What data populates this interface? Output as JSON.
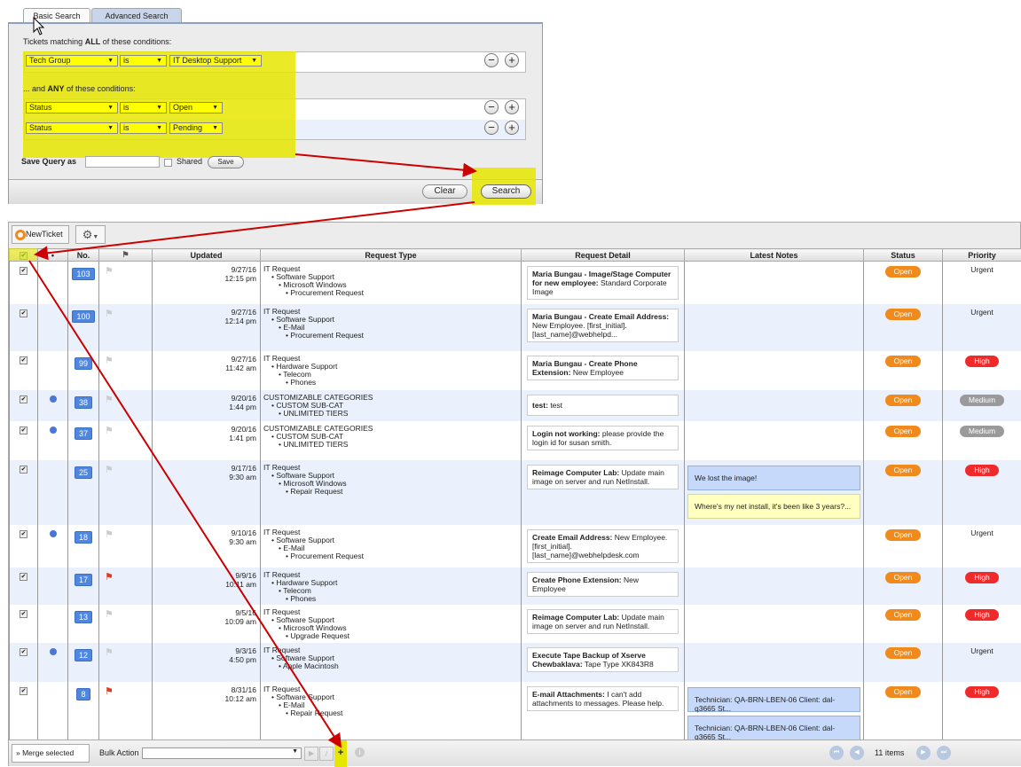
{
  "tabs": [
    "Basic Search",
    "Advanced Search"
  ],
  "search": {
    "all_label_prefix": "Tickets matching ",
    "all_bold": "ALL",
    "all_suffix": " of these conditions:",
    "any_prefix": "... and ",
    "any_bold": "ANY",
    "any_suffix": " of these conditions:",
    "all_conditions": [
      {
        "field": "Tech Group",
        "op": "is",
        "value": "IT Desktop Support"
      }
    ],
    "any_conditions": [
      {
        "field": "Status",
        "op": "is",
        "value": "Open"
      },
      {
        "field": "Status",
        "op": "is",
        "value": "Pending"
      }
    ],
    "save_query_label": "Save Query as",
    "save_query_value": "",
    "shared_label": "Shared",
    "save_button": "Save",
    "clear_button": "Clear",
    "search_button": "Search"
  },
  "toolbar": {
    "new_ticket": "NewTicket"
  },
  "columns": [
    "",
    "•",
    "No.",
    "",
    "Updated",
    "Request Type",
    "Request Detail",
    "Latest Notes",
    "Status",
    "Priority"
  ],
  "tickets": [
    {
      "no": "103",
      "dot": false,
      "flag": false,
      "date": "9/27/16",
      "time": "12:15 pm",
      "type": [
        "IT Request",
        "Software Support",
        "Microsoft Windows",
        "Procurement Request"
      ],
      "title": "Maria Bungau - Image/Stage Computer for new employee:",
      "detail": " Standard Corporate Image",
      "notes": [],
      "status": "Open",
      "priority": "Urgent"
    },
    {
      "no": "100",
      "dot": false,
      "flag": false,
      "date": "9/27/16",
      "time": "12:14 pm",
      "type": [
        "IT Request",
        "Software Support",
        "E-Mail",
        "Procurement Request"
      ],
      "title": "Maria Bungau - Create Email Address:",
      "detail": " New Employee. [first_initial].[last_name]@webhelpd...",
      "notes": [],
      "status": "Open",
      "priority": "Urgent"
    },
    {
      "no": "99",
      "dot": false,
      "flag": false,
      "date": "9/27/16",
      "time": "11:42 am",
      "type": [
        "IT Request",
        "Hardware Support",
        "Telecom",
        "Phones"
      ],
      "title": "Maria Bungau - Create Phone Extension:",
      "detail": " New Employee",
      "notes": [],
      "status": "Open",
      "priority": "High"
    },
    {
      "no": "38",
      "dot": true,
      "flag": false,
      "date": "9/20/16",
      "time": "1:44 pm",
      "type": [
        "CUSTOMIZABLE CATEGORIES",
        "CUSTOM SUB-CAT",
        "UNLIMITED TIERS"
      ],
      "title": "test:",
      "detail": " test",
      "notes": [],
      "status": "Open",
      "priority": "Medium"
    },
    {
      "no": "37",
      "dot": true,
      "flag": false,
      "date": "9/20/16",
      "time": "1:41 pm",
      "type": [
        "CUSTOMIZABLE CATEGORIES",
        "CUSTOM SUB-CAT",
        "UNLIMITED TIERS"
      ],
      "title": "Login not working:",
      "detail": " please provide the login id for susan smith.",
      "notes": [],
      "status": "Open",
      "priority": "Medium"
    },
    {
      "no": "25",
      "dot": false,
      "flag": false,
      "date": "9/17/16",
      "time": "9:30 am",
      "type": [
        "IT Request",
        "Software Support",
        "Microsoft Windows",
        "Repair Request"
      ],
      "title": "Reimage Computer Lab:",
      "detail": " Update main image on server and run NetInstall.",
      "notes": [
        {
          "text": "We lost the image!",
          "kind": "tech"
        },
        {
          "text": "Where's my net install, it's been like 3 years?...",
          "kind": "client"
        }
      ],
      "status": "Open",
      "priority": "High"
    },
    {
      "no": "18",
      "dot": true,
      "flag": false,
      "date": "9/10/16",
      "time": "9:30 am",
      "type": [
        "IT Request",
        "Software Support",
        "E-Mail",
        "Procurement Request"
      ],
      "title": "Create Email Address:",
      "detail": " New Employee. [first_initial].[last_name]@webhelpdesk.com",
      "notes": [],
      "status": "Open",
      "priority": "Urgent"
    },
    {
      "no": "17",
      "dot": false,
      "flag": true,
      "date": "9/9/16",
      "time": "10:11 am",
      "type": [
        "IT Request",
        "Hardware Support",
        "Telecom",
        "Phones"
      ],
      "title": "Create Phone Extension:",
      "detail": " New Employee",
      "notes": [],
      "status": "Open",
      "priority": "High"
    },
    {
      "no": "13",
      "dot": false,
      "flag": false,
      "date": "9/5/16",
      "time": "10:09 am",
      "type": [
        "IT Request",
        "Software Support",
        "Microsoft Windows",
        "Upgrade Request"
      ],
      "title": "Reimage Computer Lab:",
      "detail": " Update main image on server and run NetInstall.",
      "notes": [],
      "status": "Open",
      "priority": "High"
    },
    {
      "no": "12",
      "dot": true,
      "flag": false,
      "date": "9/3/16",
      "time": "4:50 pm",
      "type": [
        "IT Request",
        "Software Support",
        "Apple Macintosh"
      ],
      "title": "Execute Tape Backup of Xserve Chewbaklava:",
      "detail": " Tape Type XK843R8",
      "notes": [],
      "status": "Open",
      "priority": "Urgent"
    },
    {
      "no": "8",
      "dot": false,
      "flag": true,
      "date": "8/31/16",
      "time": "10:12 am",
      "type": [
        "IT Request",
        "Software Support",
        "E-Mail",
        "Repair Request"
      ],
      "title": "E-mail Attachments:",
      "detail": " I can't add attachments to messages. Please help.",
      "notes": [
        {
          "text": "Technician: QA-BRN-LBEN-06 Client: dal-q3665 St...",
          "kind": "tech"
        },
        {
          "text": "Technician: QA-BRN-LBEN-06 Client: dal-q3665 St...",
          "kind": "tech"
        }
      ],
      "status": "Open",
      "priority": "High"
    }
  ],
  "footer": {
    "merge_button": "Merge selected",
    "bulk_action_label": "Bulk Action",
    "bulk_action_value": "",
    "item_count": "11 items"
  },
  "colors": {
    "open": "#f08a1c",
    "high": "#f02a2a",
    "medium": "#9a9a9a",
    "highlight": "#e6e600",
    "arrow": "#cc0000",
    "tech_note": "#c6d9fa",
    "client_note": "#ffffc0"
  }
}
